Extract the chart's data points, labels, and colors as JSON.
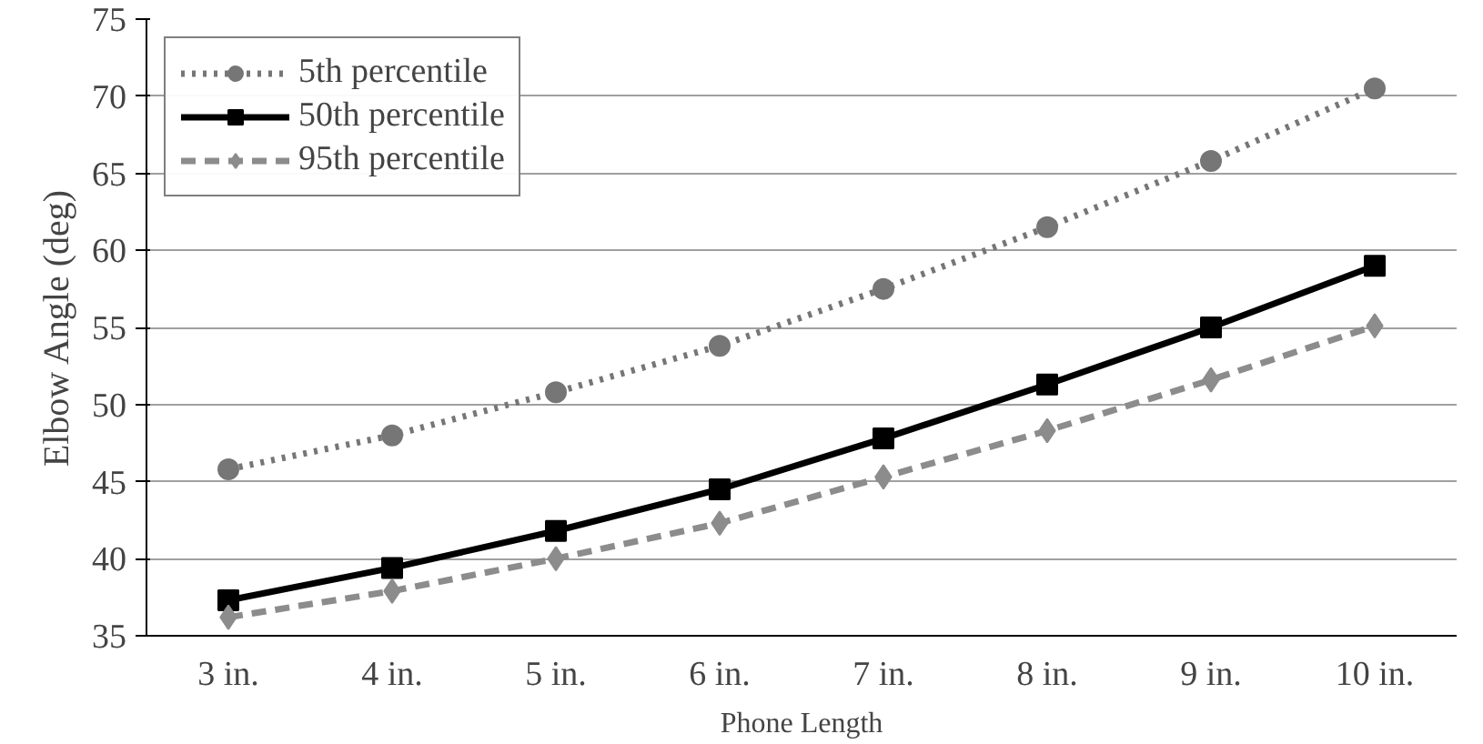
{
  "chart_data": {
    "type": "line",
    "xlabel": "Phone Length",
    "ylabel": "Elbow Angle (deg)",
    "categories": [
      "3 in.",
      "4 in.",
      "5 in.",
      "6 in.",
      "7 in.",
      "8 in.",
      "9 in.",
      "10 in."
    ],
    "ylim": [
      35,
      75
    ],
    "yticks": [
      35,
      40,
      45,
      50,
      55,
      60,
      65,
      70,
      75
    ],
    "grid": "y",
    "legend": "top left",
    "series": [
      {
        "name": "5th percentile",
        "color": "#767676",
        "marker": "circle",
        "line_style": "dotted",
        "values": [
          45.8,
          48,
          50.8,
          53.8,
          57.5,
          61.5,
          65.8,
          70.5
        ]
      },
      {
        "name": "50th percentile",
        "color": "#000000",
        "marker": "square",
        "line_style": "solid",
        "values": [
          37.3,
          39.4,
          41.8,
          44.5,
          47.8,
          51.3,
          55,
          59
        ]
      },
      {
        "name": "95th percentile",
        "color": "#8c8c8c",
        "marker": "diamond",
        "line_style": "dashed",
        "values": [
          36.2,
          37.9,
          40,
          42.3,
          45.3,
          48.3,
          51.6,
          55.1
        ]
      }
    ]
  }
}
